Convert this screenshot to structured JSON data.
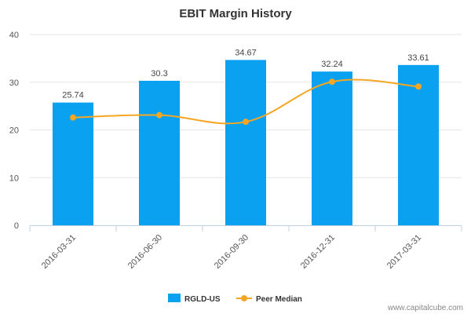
{
  "chart_data": {
    "type": "bar",
    "title": "EBIT Margin History",
    "categories": [
      "2016-03-31",
      "2016-06-30",
      "2016-09-30",
      "2016-12-31",
      "2017-03-31"
    ],
    "series": [
      {
        "name": "RGLD-US",
        "type": "bar",
        "color": "#0aa1f0",
        "values": [
          25.74,
          30.3,
          34.67,
          32.24,
          33.61
        ],
        "labels": [
          "25.74",
          "30.3",
          "34.67",
          "32.24",
          "33.61"
        ]
      },
      {
        "name": "Peer Median",
        "type": "line",
        "color": "#f5a623",
        "values": [
          22.6,
          23.1,
          21.7,
          30.1,
          29.1
        ]
      }
    ],
    "ylim": [
      0,
      40
    ],
    "yticks": [
      0,
      10,
      20,
      30,
      40
    ],
    "grid": true,
    "legend": "bottom-center"
  },
  "credit": "www.capitalcube.com"
}
